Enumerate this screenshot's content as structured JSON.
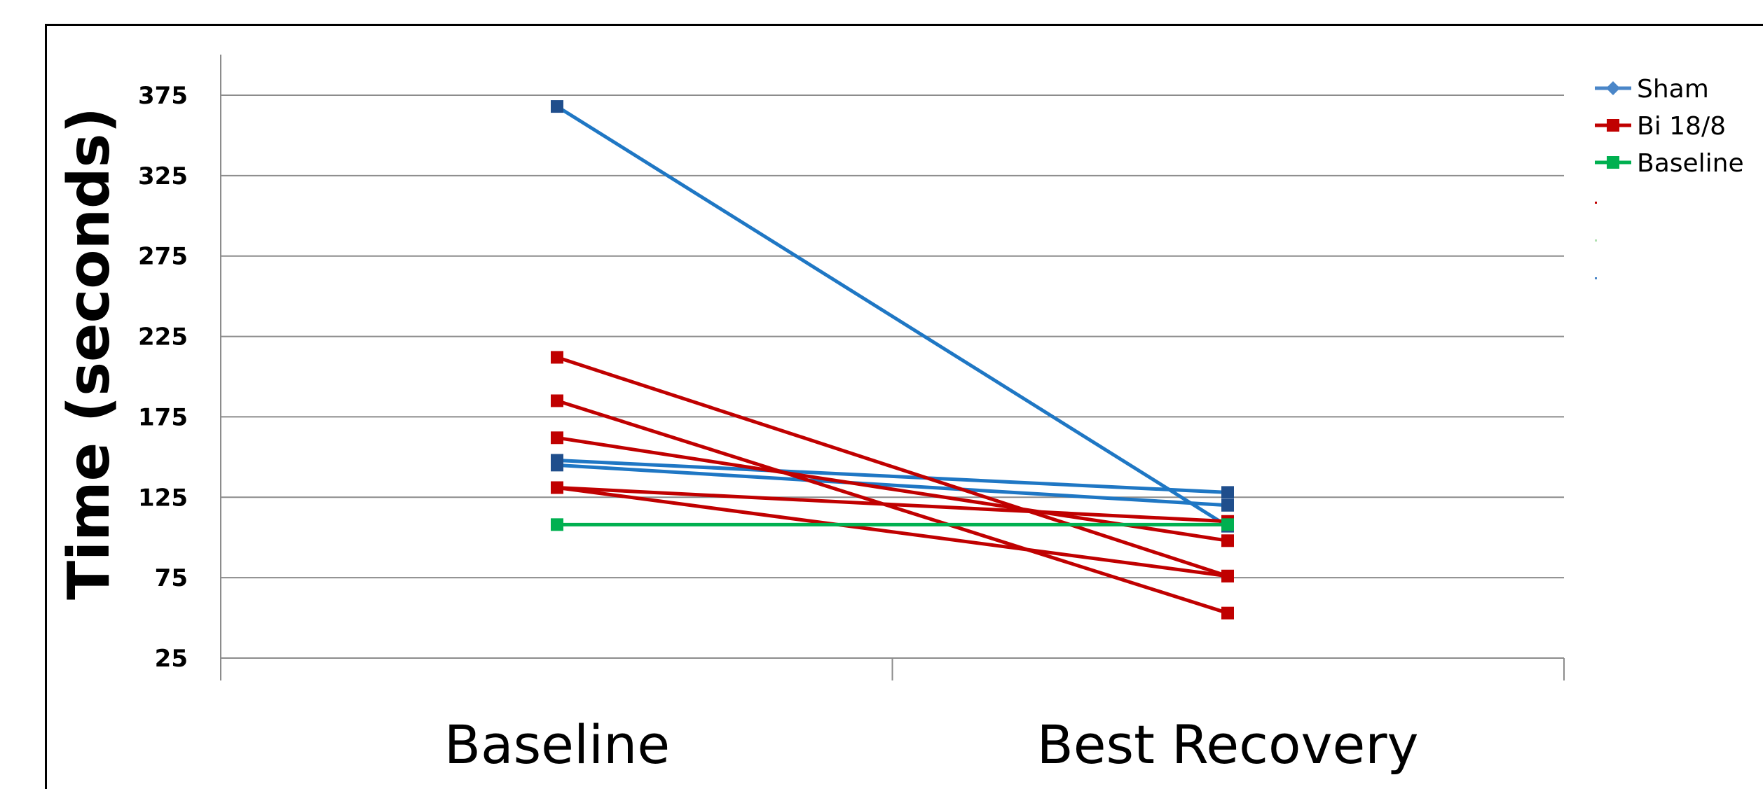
{
  "chart_data": {
    "type": "line",
    "categories": [
      "Baseline",
      "Best Recovery"
    ],
    "ylabel": "Time (seconds)",
    "xlabel": "",
    "yticks": [
      25,
      75,
      125,
      175,
      225,
      275,
      325,
      375
    ],
    "ylim": [
      25,
      390
    ],
    "grid": true,
    "legend_position": "top-right",
    "legend": [
      {
        "name": "Sham",
        "color": "#4a86c8",
        "marker": "diamond"
      },
      {
        "name": "Bi 18/8",
        "color": "#c00000",
        "marker": "square"
      },
      {
        "name": "Baseline",
        "color": "#00b050",
        "marker": "square"
      }
    ],
    "series": [
      {
        "name": "Sham",
        "group": "Sham",
        "color": "#1f77c4",
        "values": [
          368,
          107
        ]
      },
      {
        "name": "Sham",
        "group": "Sham",
        "color": "#1f77c4",
        "values": [
          148,
          128
        ]
      },
      {
        "name": "Sham",
        "group": "Sham",
        "color": "#1f77c4",
        "values": [
          145,
          120
        ]
      },
      {
        "name": "Bi 18/8",
        "group": "Bi 18/8",
        "color": "#c00000",
        "values": [
          212,
          76
        ]
      },
      {
        "name": "Bi 18/8",
        "group": "Bi 18/8",
        "color": "#c00000",
        "values": [
          185,
          53
        ]
      },
      {
        "name": "Bi 18/8",
        "group": "Bi 18/8",
        "color": "#c00000",
        "values": [
          162,
          98
        ]
      },
      {
        "name": "Bi 18/8",
        "group": "Bi 18/8",
        "color": "#c00000",
        "values": [
          131,
          110
        ]
      },
      {
        "name": "Bi 18/8",
        "group": "Bi 18/8",
        "color": "#c00000",
        "values": [
          131,
          76
        ]
      },
      {
        "name": "Baseline",
        "group": "Baseline",
        "color": "#00b050",
        "values": [
          108,
          108
        ]
      }
    ]
  }
}
